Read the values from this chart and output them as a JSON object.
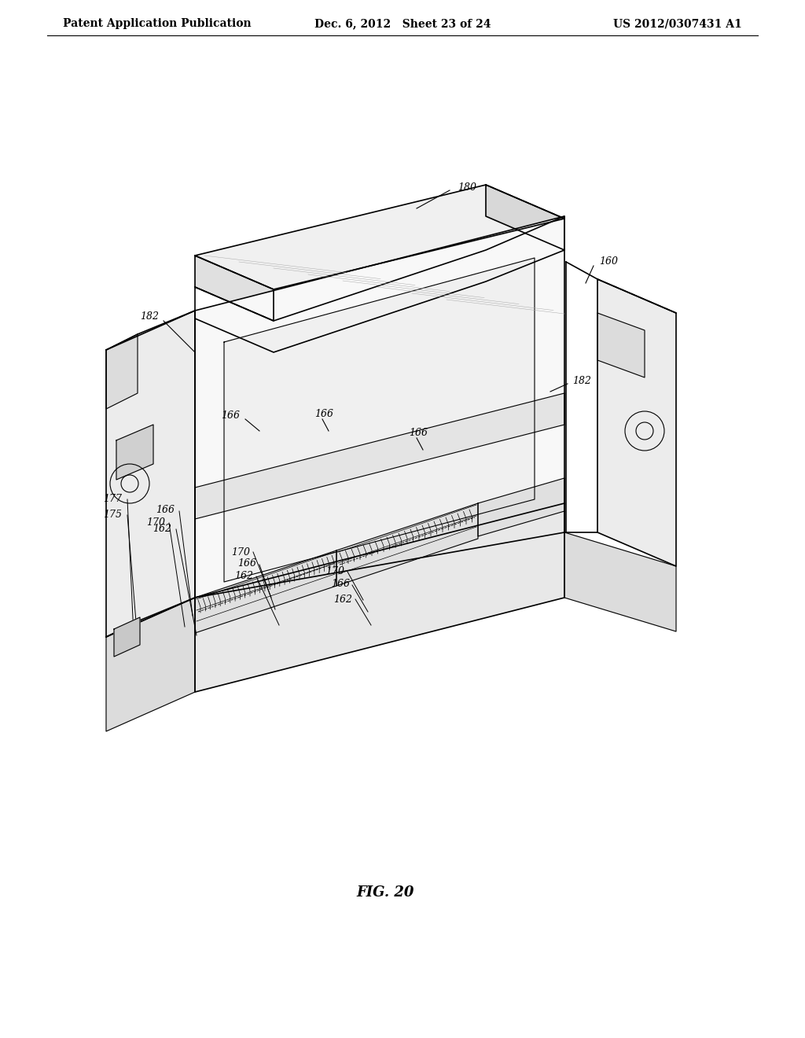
{
  "background_color": "#ffffff",
  "header_left": "Patent Application Publication",
  "header_center": "Dec. 6, 2012   Sheet 23 of 24",
  "header_right": "US 2012/0307431 A1",
  "figure_label": "FIG. 20",
  "line_color": "#000000",
  "text_color": "#000000",
  "header_fontsize": 10,
  "label_fontsize": 9,
  "fig_label_fontsize": 13
}
